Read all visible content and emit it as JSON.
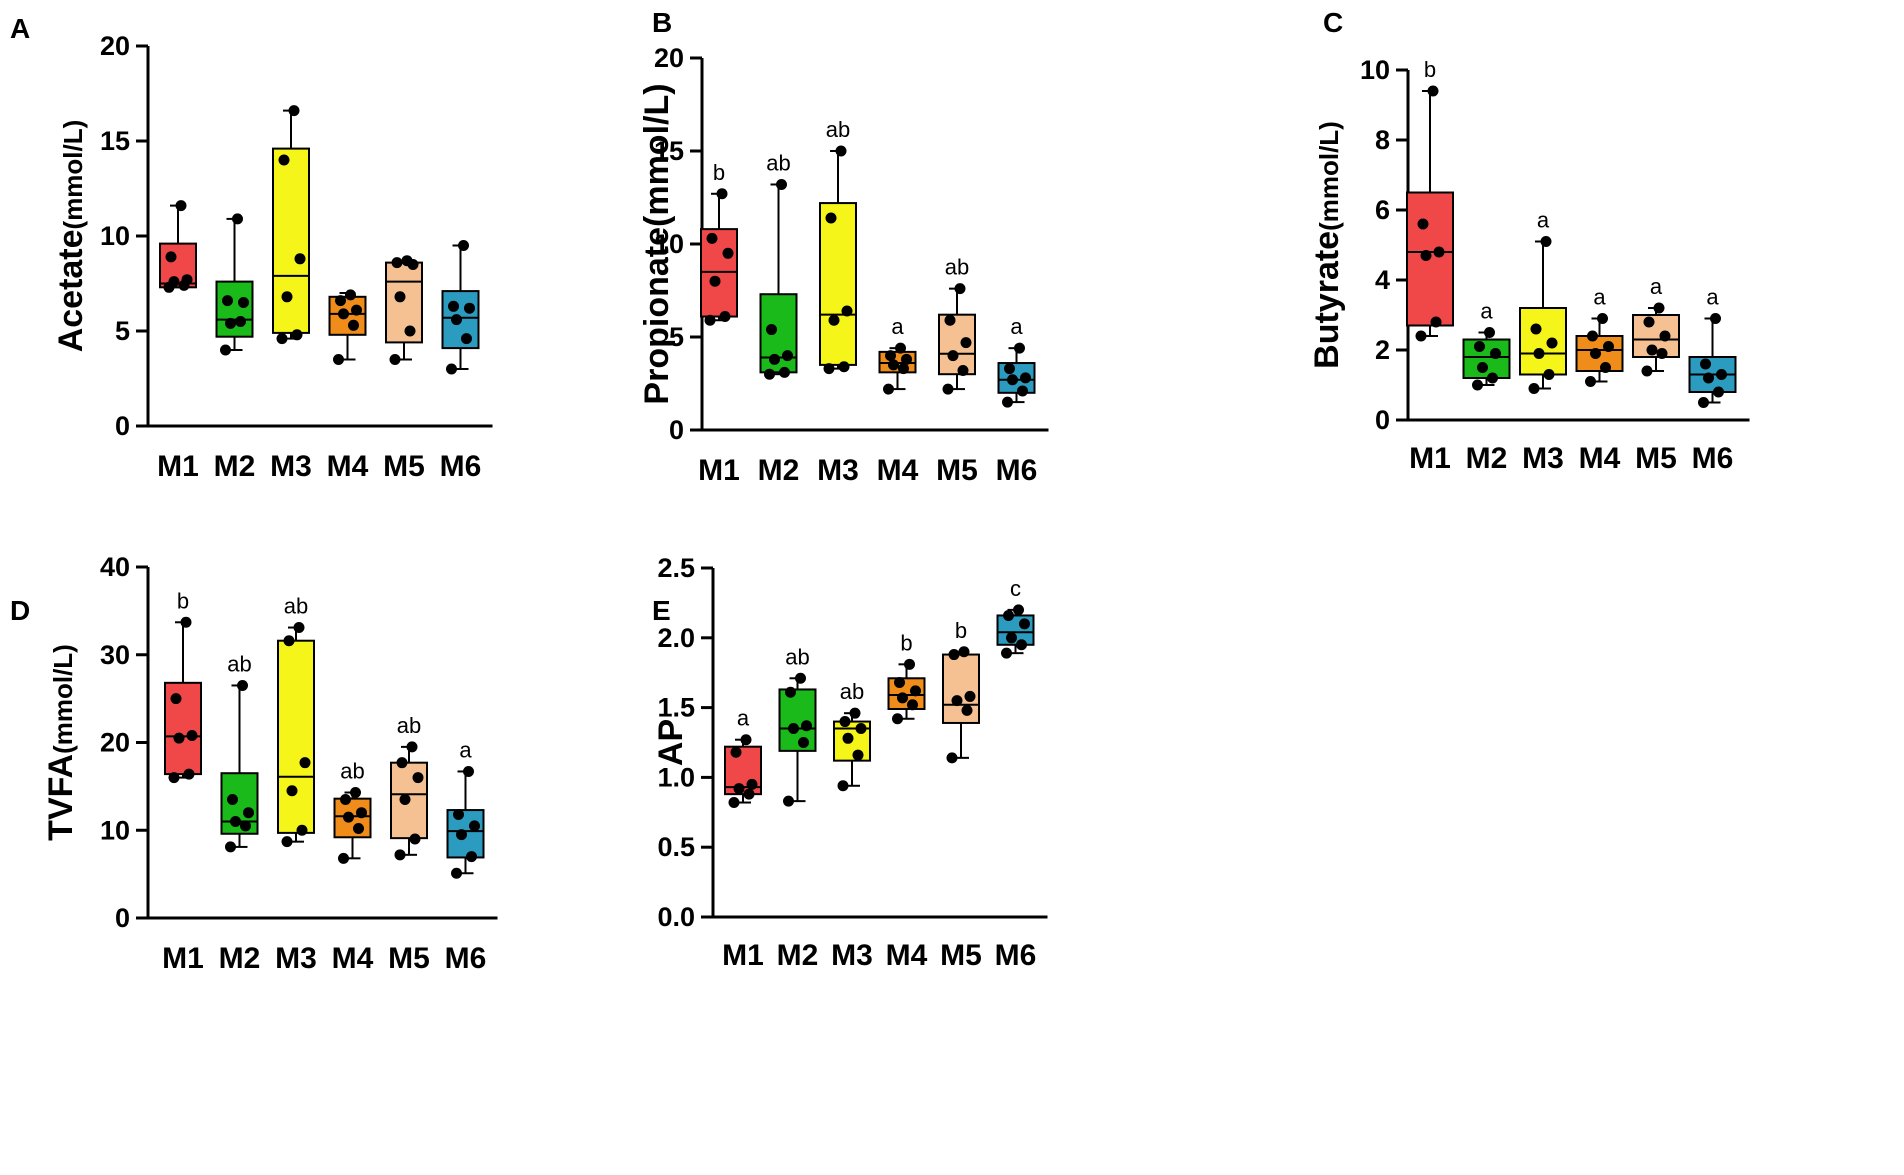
{
  "chart_data": [
    {
      "panel": "A",
      "type": "box",
      "ylabel": "Acetate",
      "ylabel_unit": "(mmol/L)",
      "ylim": [
        0,
        20
      ],
      "yticks": [
        "0",
        "5",
        "10",
        "15",
        "20"
      ],
      "categories": [
        "M1",
        "M2",
        "M3",
        "M4",
        "M5",
        "M6"
      ],
      "boxes": [
        {
          "cat": "M1",
          "color": "#f04848",
          "min": 7.3,
          "q1": 7.3,
          "median": 7.5,
          "q3": 9.6,
          "max": 11.6,
          "points": [
            7.3,
            7.4,
            7.6,
            7.7,
            8.9,
            11.6
          ],
          "sig": ""
        },
        {
          "cat": "M2",
          "color": "#1aba1a",
          "min": 4.0,
          "q1": 4.7,
          "median": 5.6,
          "q3": 7.6,
          "max": 10.9,
          "points": [
            4.0,
            5.5,
            5.4,
            6.5,
            6.6,
            10.9
          ],
          "sig": ""
        },
        {
          "cat": "M3",
          "color": "#f5f51a",
          "min": 4.6,
          "q1": 4.9,
          "median": 7.9,
          "q3": 14.6,
          "max": 16.6,
          "points": [
            4.6,
            4.8,
            6.8,
            8.8,
            14.0,
            16.6
          ],
          "sig": ""
        },
        {
          "cat": "M4",
          "color": "#f08c1a",
          "min": 3.5,
          "q1": 4.8,
          "median": 5.9,
          "q3": 6.8,
          "max": 7.0,
          "points": [
            3.5,
            5.3,
            5.9,
            6.1,
            6.6,
            6.9
          ],
          "sig": ""
        },
        {
          "cat": "M5",
          "color": "#f5c192",
          "min": 3.5,
          "q1": 4.4,
          "median": 7.6,
          "q3": 8.6,
          "max": 8.7,
          "points": [
            3.5,
            5.0,
            6.8,
            8.5,
            8.6,
            8.7
          ],
          "sig": ""
        },
        {
          "cat": "M6",
          "color": "#2b9cc0",
          "min": 3.0,
          "q1": 4.1,
          "median": 5.7,
          "q3": 7.1,
          "max": 9.5,
          "points": [
            3.0,
            4.6,
            5.6,
            6.2,
            6.3,
            9.5
          ],
          "sig": ""
        }
      ]
    },
    {
      "panel": "B",
      "type": "box",
      "ylabel": "Propionate",
      "ylabel_unit": "(mmol/L)",
      "ylim": [
        0,
        20
      ],
      "yticks": [
        "0",
        "5",
        "10",
        "15",
        "20"
      ],
      "categories": [
        "M1",
        "M2",
        "M3",
        "M4",
        "M5",
        "M6"
      ],
      "boxes": [
        {
          "cat": "M1",
          "color": "#f04848",
          "min": 5.9,
          "q1": 6.1,
          "median": 8.5,
          "q3": 10.8,
          "max": 12.7,
          "points": [
            5.9,
            6.1,
            8.0,
            9.5,
            10.3,
            12.7
          ],
          "sig": "b"
        },
        {
          "cat": "M2",
          "color": "#1aba1a",
          "min": 3.0,
          "q1": 3.1,
          "median": 3.9,
          "q3": 7.3,
          "max": 13.2,
          "points": [
            3.0,
            3.1,
            3.8,
            4.0,
            5.4,
            13.2
          ],
          "sig": "ab"
        },
        {
          "cat": "M3",
          "color": "#f5f51a",
          "min": 3.3,
          "q1": 3.5,
          "median": 6.2,
          "q3": 12.2,
          "max": 15.0,
          "points": [
            3.3,
            3.4,
            5.9,
            6.4,
            11.4,
            15.0
          ],
          "sig": "ab"
        },
        {
          "cat": "M4",
          "color": "#f08c1a",
          "min": 2.2,
          "q1": 3.1,
          "median": 3.6,
          "q3": 4.2,
          "max": 4.4,
          "points": [
            2.2,
            3.3,
            3.5,
            3.8,
            4.0,
            4.4
          ],
          "sig": "a"
        },
        {
          "cat": "M5",
          "color": "#f5c192",
          "min": 2.2,
          "q1": 3.0,
          "median": 4.1,
          "q3": 6.2,
          "max": 7.6,
          "points": [
            2.2,
            3.2,
            4.0,
            4.7,
            5.9,
            7.6
          ],
          "sig": "ab"
        },
        {
          "cat": "M6",
          "color": "#2b9cc0",
          "min": 1.5,
          "q1": 2.0,
          "median": 2.7,
          "q3": 3.6,
          "max": 4.4,
          "points": [
            1.5,
            2.1,
            2.7,
            2.8,
            3.3,
            4.4
          ],
          "sig": "a"
        }
      ]
    },
    {
      "panel": "C",
      "type": "box",
      "ylabel": "Butyrate",
      "ylabel_unit": "(mmol/L)",
      "ylim": [
        0,
        10
      ],
      "yticks": [
        "0",
        "2",
        "4",
        "6",
        "8",
        "10"
      ],
      "categories": [
        "M1",
        "M2",
        "M3",
        "M4",
        "M5",
        "M6"
      ],
      "boxes": [
        {
          "cat": "M1",
          "color": "#f04848",
          "min": 2.4,
          "q1": 2.7,
          "median": 4.8,
          "q3": 6.5,
          "max": 9.4,
          "points": [
            2.4,
            2.8,
            4.7,
            4.8,
            5.6,
            9.4
          ],
          "sig": "b"
        },
        {
          "cat": "M2",
          "color": "#1aba1a",
          "min": 1.0,
          "q1": 1.2,
          "median": 1.8,
          "q3": 2.3,
          "max": 2.5,
          "points": [
            1.0,
            1.2,
            1.5,
            1.9,
            2.1,
            2.5
          ],
          "sig": "a"
        },
        {
          "cat": "M3",
          "color": "#f5f51a",
          "min": 0.9,
          "q1": 1.3,
          "median": 1.9,
          "q3": 3.2,
          "max": 5.1,
          "points": [
            0.9,
            1.3,
            1.9,
            2.2,
            2.6,
            5.1
          ],
          "sig": "a"
        },
        {
          "cat": "M4",
          "color": "#f08c1a",
          "min": 1.1,
          "q1": 1.4,
          "median": 2.0,
          "q3": 2.4,
          "max": 2.9,
          "points": [
            1.1,
            1.5,
            1.9,
            2.1,
            2.4,
            2.9
          ],
          "sig": "a"
        },
        {
          "cat": "M5",
          "color": "#f5c192",
          "min": 1.4,
          "q1": 1.8,
          "median": 2.3,
          "q3": 3.0,
          "max": 3.2,
          "points": [
            1.4,
            1.9,
            2.0,
            2.4,
            2.8,
            3.2
          ],
          "sig": "a"
        },
        {
          "cat": "M6",
          "color": "#2b9cc0",
          "min": 0.5,
          "q1": 0.8,
          "median": 1.3,
          "q3": 1.8,
          "max": 2.9,
          "points": [
            0.5,
            0.8,
            1.2,
            1.3,
            1.6,
            2.9
          ],
          "sig": "a"
        }
      ]
    },
    {
      "panel": "D",
      "type": "box",
      "ylabel": "TVFA",
      "ylabel_unit": "(mmol/L)",
      "ylim": [
        0,
        40
      ],
      "yticks": [
        "0",
        "10",
        "20",
        "30",
        "40"
      ],
      "categories": [
        "M1",
        "M2",
        "M3",
        "M4",
        "M5",
        "M6"
      ],
      "boxes": [
        {
          "cat": "M1",
          "color": "#f04848",
          "min": 16.0,
          "q1": 16.4,
          "median": 20.7,
          "q3": 26.8,
          "max": 33.7,
          "points": [
            16.0,
            16.4,
            20.5,
            20.8,
            25.0,
            33.7
          ],
          "sig": "b"
        },
        {
          "cat": "M2",
          "color": "#1aba1a",
          "min": 8.1,
          "q1": 9.6,
          "median": 11.0,
          "q3": 16.5,
          "max": 26.5,
          "points": [
            8.1,
            10.5,
            11.0,
            12.0,
            13.5,
            26.5
          ],
          "sig": "ab"
        },
        {
          "cat": "M3",
          "color": "#f5f51a",
          "min": 8.7,
          "q1": 9.7,
          "median": 16.1,
          "q3": 31.6,
          "max": 33.1,
          "points": [
            8.7,
            10.0,
            14.5,
            17.7,
            31.6,
            33.1
          ],
          "sig": "ab"
        },
        {
          "cat": "M4",
          "color": "#f08c1a",
          "min": 6.8,
          "q1": 9.2,
          "median": 11.6,
          "q3": 13.6,
          "max": 14.3,
          "points": [
            6.8,
            10.2,
            11.5,
            12.0,
            13.5,
            14.3
          ],
          "sig": "ab"
        },
        {
          "cat": "M5",
          "color": "#f5c192",
          "min": 7.2,
          "q1": 9.1,
          "median": 14.1,
          "q3": 17.7,
          "max": 19.5,
          "points": [
            7.2,
            9.0,
            13.5,
            16.0,
            17.7,
            19.5
          ],
          "sig": "ab"
        },
        {
          "cat": "M6",
          "color": "#2b9cc0",
          "min": 5.1,
          "q1": 6.9,
          "median": 9.9,
          "q3": 12.3,
          "max": 16.7,
          "points": [
            5.1,
            7.0,
            9.5,
            10.5,
            11.8,
            16.7
          ],
          "sig": "a"
        }
      ]
    },
    {
      "panel": "E",
      "type": "box",
      "ylabel": "AP",
      "ylabel_unit": "",
      "ylim": [
        0,
        2.5
      ],
      "yticks": [
        "0.0",
        "0.5",
        "1.0",
        "1.5",
        "2.0",
        "2.5"
      ],
      "categories": [
        "M1",
        "M2",
        "M3",
        "M4",
        "M5",
        "M6"
      ],
      "boxes": [
        {
          "cat": "M1",
          "color": "#f04848",
          "min": 0.82,
          "q1": 0.88,
          "median": 0.93,
          "q3": 1.22,
          "max": 1.27,
          "points": [
            0.82,
            0.88,
            0.92,
            0.95,
            1.18,
            1.27
          ],
          "sig": "a"
        },
        {
          "cat": "M2",
          "color": "#1aba1a",
          "min": 0.83,
          "q1": 1.19,
          "median": 1.35,
          "q3": 1.63,
          "max": 1.71,
          "points": [
            0.83,
            1.25,
            1.35,
            1.37,
            1.61,
            1.71
          ],
          "sig": "ab"
        },
        {
          "cat": "M3",
          "color": "#f5f51a",
          "min": 0.94,
          "q1": 1.12,
          "median": 1.35,
          "q3": 1.4,
          "max": 1.46,
          "points": [
            0.94,
            1.16,
            1.28,
            1.35,
            1.4,
            1.46
          ],
          "sig": "ab"
        },
        {
          "cat": "M4",
          "color": "#f08c1a",
          "min": 1.42,
          "q1": 1.49,
          "median": 1.59,
          "q3": 1.71,
          "max": 1.81,
          "points": [
            1.42,
            1.52,
            1.57,
            1.62,
            1.68,
            1.81
          ],
          "sig": "b"
        },
        {
          "cat": "M5",
          "color": "#f5c192",
          "min": 1.14,
          "q1": 1.39,
          "median": 1.52,
          "q3": 1.88,
          "max": 1.9,
          "points": [
            1.14,
            1.48,
            1.55,
            1.58,
            1.88,
            1.9
          ],
          "sig": "b"
        },
        {
          "cat": "M6",
          "color": "#2b9cc0",
          "min": 1.89,
          "q1": 1.95,
          "median": 2.04,
          "q3": 2.16,
          "max": 2.2,
          "points": [
            1.89,
            1.95,
            2.0,
            2.1,
            2.16,
            2.2
          ],
          "sig": "c"
        }
      ]
    }
  ]
}
